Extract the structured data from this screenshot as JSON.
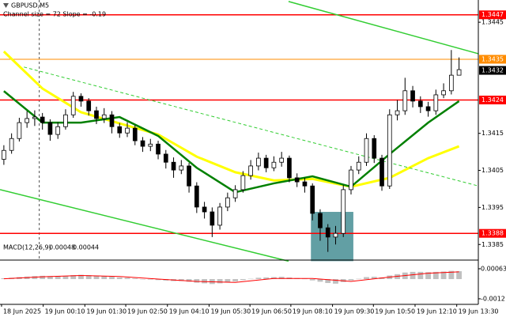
{
  "chart_data": {
    "type": "candlestick",
    "title": "GBPUSD,M5",
    "subtitle": "Channel size = 72 Slope = -0.19",
    "xlim": [
      -0.5,
      61.5
    ],
    "ylim": [
      1.3381,
      1.3451
    ],
    "xticks": [
      {
        "value": -0.3,
        "label": "18 Jun 2025"
      },
      {
        "value": 5.1,
        "label": "19 Jun 00:10"
      },
      {
        "value": 10.5,
        "label": "19 Jun 01:30"
      },
      {
        "value": 15.8,
        "label": "19 Jun 02:50"
      },
      {
        "value": 21.2,
        "label": "19 Jun 04:10"
      },
      {
        "value": 26.6,
        "label": "19 Jun 05:30"
      },
      {
        "value": 31.9,
        "label": "19 Jun 06:50"
      },
      {
        "value": 37.2,
        "label": "19 Jun 08:10"
      },
      {
        "value": 42.6,
        "label": "19 Jun 09:30"
      },
      {
        "value": 47.9,
        "label": "19 Jun 10:50"
      },
      {
        "value": 53.3,
        "label": "19 Jun 12:10"
      },
      {
        "value": 58.7,
        "label": "19 Jun 13:30"
      }
    ],
    "yticks": [
      1.3385,
      1.3395,
      1.3405,
      1.3415,
      1.3445
    ],
    "levels": [
      {
        "value": 1.3447,
        "color": "#ff0000"
      },
      {
        "value": 1.3435,
        "color": "#ff8c00"
      },
      {
        "value": 1.3424,
        "color": "#ff0000"
      },
      {
        "value": 1.3388,
        "color": "#ff0000"
      }
    ],
    "current_price": 1.3432,
    "vlines": [
      4.6
    ],
    "highlight_box": {
      "x": [
        39.8,
        45.3
      ],
      "y": [
        1.33805,
        1.33938
      ],
      "color": "#2e7f86"
    },
    "open": [
      1.3408,
      1.34104,
      1.34136,
      1.34179,
      1.3419,
      1.34194,
      1.34179,
      1.34147,
      1.34168,
      1.342,
      1.3425,
      1.34237,
      1.34211,
      1.3419,
      1.342,
      1.34168,
      1.34151,
      1.34164,
      1.3413,
      1.34115,
      1.34121,
      1.34094,
      1.34072,
      1.34051,
      1.34062,
      1.34008,
      1.33951,
      1.33938,
      1.33902,
      1.33951,
      1.33976,
      1.33998,
      1.34036,
      1.34062,
      1.34083,
      1.34057,
      1.34072,
      1.34083,
      1.3403,
      1.34019,
      1.34008,
      1.33934,
      1.33895,
      1.3387,
      1.3388,
      1.33998,
      1.34051,
      1.34072,
      1.34136,
      1.34083,
      1.34008,
      1.342,
      1.34211,
      1.34265,
      1.34237,
      1.34222,
      1.34211,
      1.34254,
      1.34265,
      1.34307
    ],
    "high": [
      1.34118,
      1.3415,
      1.34192,
      1.3421,
      1.34212,
      1.34205,
      1.34188,
      1.3418,
      1.34215,
      1.34262,
      1.34258,
      1.34245,
      1.34222,
      1.34218,
      1.3421,
      1.34178,
      1.3418,
      1.34172,
      1.3414,
      1.34135,
      1.3413,
      1.34105,
      1.34085,
      1.34078,
      1.3407,
      1.34018,
      1.33965,
      1.3395,
      1.33962,
      1.3399,
      1.3401,
      1.34048,
      1.34078,
      1.34098,
      1.34092,
      1.34088,
      1.341,
      1.3409,
      1.34042,
      1.3403,
      1.34015,
      1.33945,
      1.33905,
      1.339,
      1.3401,
      1.34062,
      1.34088,
      1.3415,
      1.34145,
      1.34092,
      1.34215,
      1.3424,
      1.343,
      1.34278,
      1.3425,
      1.34235,
      1.34268,
      1.34285,
      1.34375,
      1.34355
    ],
    "low": [
      1.34065,
      1.34095,
      1.34128,
      1.34165,
      1.3417,
      1.3416,
      1.3413,
      1.34135,
      1.3416,
      1.34192,
      1.34222,
      1.34198,
      1.34175,
      1.34178,
      1.3415,
      1.34138,
      1.3414,
      1.34118,
      1.341,
      1.34102,
      1.3408,
      1.34055,
      1.3403,
      1.3404,
      1.3399,
      1.33935,
      1.3392,
      1.3387,
      1.3389,
      1.3394,
      1.33965,
      1.3399,
      1.34025,
      1.3405,
      1.34045,
      1.34048,
      1.3406,
      1.34018,
      1.34005,
      1.3399,
      1.33915,
      1.3386,
      1.3383,
      1.3385,
      1.3387,
      1.33985,
      1.3404,
      1.34062,
      1.3407,
      1.33995,
      1.34,
      1.34185,
      1.342,
      1.3422,
      1.34205,
      1.34195,
      1.342,
      1.34245,
      1.34255,
      1.3431
    ],
    "close": [
      1.34104,
      1.34136,
      1.34179,
      1.3419,
      1.34194,
      1.34179,
      1.34147,
      1.34168,
      1.342,
      1.3425,
      1.34237,
      1.34211,
      1.3419,
      1.342,
      1.34168,
      1.34151,
      1.34164,
      1.3413,
      1.34115,
      1.34121,
      1.34094,
      1.34072,
      1.34051,
      1.34062,
      1.34008,
      1.33951,
      1.33938,
      1.33902,
      1.33951,
      1.33976,
      1.33998,
      1.34036,
      1.34062,
      1.34083,
      1.34057,
      1.34072,
      1.34083,
      1.3403,
      1.34019,
      1.34008,
      1.33934,
      1.33895,
      1.3387,
      1.3388,
      1.33998,
      1.34051,
      1.34072,
      1.34136,
      1.34083,
      1.34008,
      1.342,
      1.34211,
      1.34265,
      1.34237,
      1.34222,
      1.34211,
      1.34254,
      1.34265,
      1.34307,
      1.34322
    ],
    "lines": [
      {
        "color": "#ffff00",
        "width": 3,
        "x": [
          0,
          5,
          10,
          15,
          20,
          25,
          30,
          35,
          40,
          45,
          50,
          55,
          59
        ],
        "values": [
          1.34371,
          1.34271,
          1.34207,
          1.34177,
          1.34147,
          1.34087,
          1.34045,
          1.34023,
          1.34027,
          1.34006,
          1.3403,
          1.34083,
          1.34115
        ]
      },
      {
        "color": "#008000",
        "width": 2.5,
        "x": [
          0,
          5,
          10,
          15,
          20,
          25,
          30,
          35,
          40,
          45,
          50,
          55,
          59
        ],
        "values": [
          1.34264,
          1.34179,
          1.34179,
          1.34194,
          1.34143,
          1.34057,
          1.33991,
          1.34015,
          1.34034,
          1.34006,
          1.34094,
          1.34179,
          1.34237
        ]
      },
      {
        "color": "#32cd32",
        "width": 1.5,
        "x": [
          36.9,
          61.5
        ],
        "values": [
          1.34506,
          1.34365
        ]
      },
      {
        "color": "#32cd32",
        "width": 1.5,
        "x": [
          -0.5,
          36.9
        ],
        "values": [
          1.33998,
          1.33805
        ]
      },
      {
        "color": "#32cd32",
        "width": 1,
        "dash": true,
        "x": [
          2.6,
          61.5
        ],
        "values": [
          1.34329,
          1.34008
        ]
      }
    ],
    "macd": {
      "label": "MACD(12,26,9)",
      "y2lim": [
        -0.00154,
        0.00111
      ],
      "y2ticks": [
        0.00063,
        -0.0012
      ],
      "hist_color": "#c0c0c0",
      "signal_color": "#ff0000",
      "hist": [
        5e-05,
        8e-05,
        0.00012,
        0.00015,
        0.00018,
        0.0002,
        0.00018,
        0.00017,
        0.00019,
        0.00024,
        0.00026,
        0.00024,
        0.0002,
        0.00018,
        0.00014,
        0.0001,
        8e-05,
        4e-05,
        0.0,
        -3e-05,
        -6e-05,
        -9e-05,
        -0.00012,
        -0.00012,
        -0.00016,
        -0.00022,
        -0.00026,
        -0.0003,
        -0.00026,
        -0.0002,
        -0.00014,
        -6e-05,
        2e-05,
        8e-05,
        0.0001,
        0.00012,
        0.00014,
        0.0001,
        6e-05,
        2e-05,
        -8e-05,
        -0.00016,
        -0.00024,
        -0.00028,
        -0.00018,
        -8e-05,
        2e-05,
        0.00012,
        0.00014,
        0.0001,
        0.00022,
        0.0003,
        0.0004,
        0.00044,
        0.00044,
        0.00042,
        0.00044,
        0.00046,
        0.0005,
        0.00048
      ],
      "signal_x": [
        0,
        5,
        10,
        15,
        20,
        25,
        30,
        35,
        40,
        45,
        50,
        55,
        59
      ],
      "signal": [
        2e-05,
        0.00014,
        0.00022,
        0.00016,
        0.0,
        -0.00014,
        -0.0002,
        4e-05,
        4e-05,
        -0.00014,
        0.00012,
        0.00036,
        0.00044
      ]
    }
  }
}
